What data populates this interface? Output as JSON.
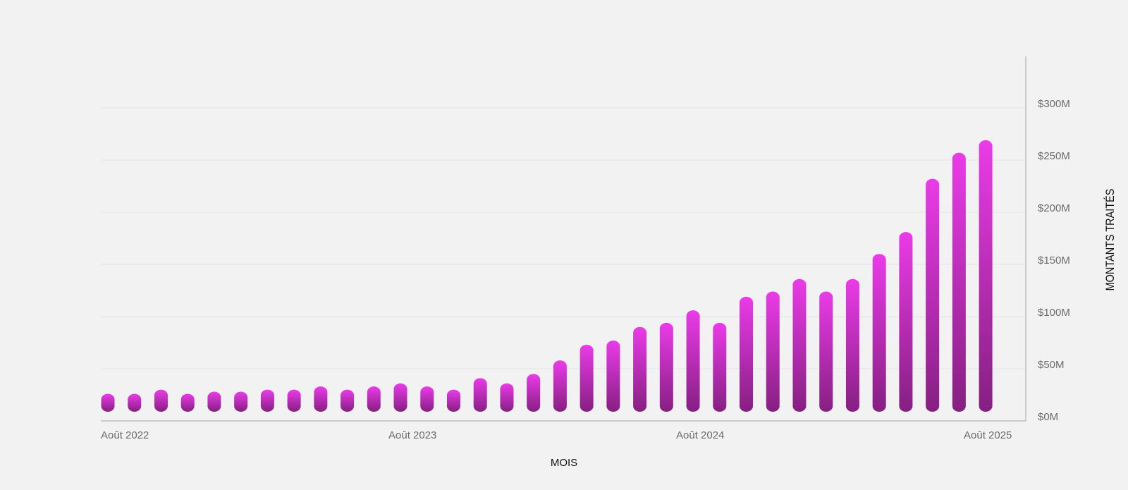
{
  "chart_data": {
    "type": "bar",
    "title": "",
    "xlabel": "MOIS",
    "ylabel": "MONTANTS TRAITÉS",
    "ylim": [
      0,
      300
    ],
    "y_unit": "M USD",
    "yticks": [
      "$0M",
      "$50M",
      "$100M",
      "$150M",
      "$200M",
      "$250M",
      "$300M"
    ],
    "xtick_labels": [
      "Août 2022",
      "Août 2023",
      "Août 2024",
      "Août 2025"
    ],
    "y_axis_position": "right",
    "grid": true,
    "values": [
      26,
      26,
      30,
      26,
      28,
      28,
      30,
      30,
      33,
      30,
      33,
      36,
      33,
      30,
      41,
      36,
      45,
      58,
      73,
      77,
      90,
      94,
      106,
      94,
      119,
      124,
      136,
      124,
      136,
      160,
      181,
      232,
      257,
      269
    ],
    "colors": {
      "bar_top": "#ea3be8",
      "bar_bottom": "#861f82",
      "grid": "#e4e4e4",
      "axis": "#bdbdbd"
    }
  }
}
